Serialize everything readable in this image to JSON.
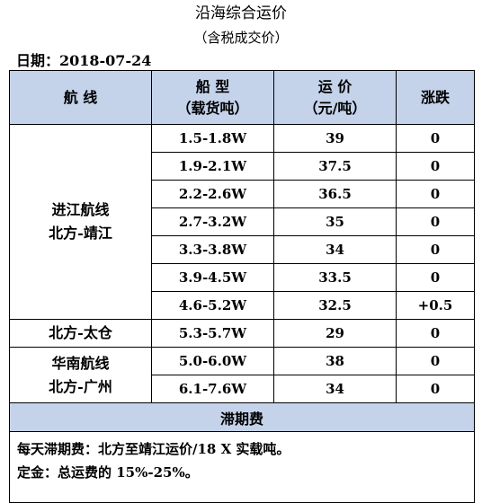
{
  "title": "沿海综合运价",
  "subtitle": "（含税成交价）",
  "date_label": "日期：2018-07-24",
  "headers": {
    "route": "航 线",
    "ship_line1": "船 型",
    "ship_line2": "（载货吨）",
    "price_line1": "运 价",
    "price_line2": "（元/吨）",
    "change": "涨跌"
  },
  "groups": [
    {
      "route_line1": "进江航线",
      "route_line2": "北方-靖江",
      "rows": [
        {
          "ship": "1.5-1.8W",
          "price": "39",
          "change": "0"
        },
        {
          "ship": "1.9-2.1W",
          "price": "37.5",
          "change": "0"
        },
        {
          "ship": "2.2-2.6W",
          "price": "36.5",
          "change": "0"
        },
        {
          "ship": "2.7-3.2W",
          "price": "35",
          "change": "0"
        },
        {
          "ship": "3.3-3.8W",
          "price": "34",
          "change": "0"
        },
        {
          "ship": "3.9-4.5W",
          "price": "33.5",
          "change": "0"
        },
        {
          "ship": "4.6-5.2W",
          "price": "32.5",
          "change": "+0.5"
        }
      ]
    },
    {
      "route_line1": "北方-太仓",
      "route_line2": "",
      "rows": [
        {
          "ship": "5.3-5.7W",
          "price": "29",
          "change": "0"
        }
      ]
    },
    {
      "route_line1": "华南航线",
      "route_line2": "北方-广州",
      "rows": [
        {
          "ship": "5.0-6.0W",
          "price": "38",
          "change": "0"
        },
        {
          "ship": "6.1-7.6W",
          "price": "34",
          "change": "0"
        }
      ]
    }
  ],
  "section_title": "滞期费",
  "notes": [
    "每天滞期费：北方至靖江运价/18 X 实载吨。",
    "定金：总运费的 15%-25%。"
  ]
}
